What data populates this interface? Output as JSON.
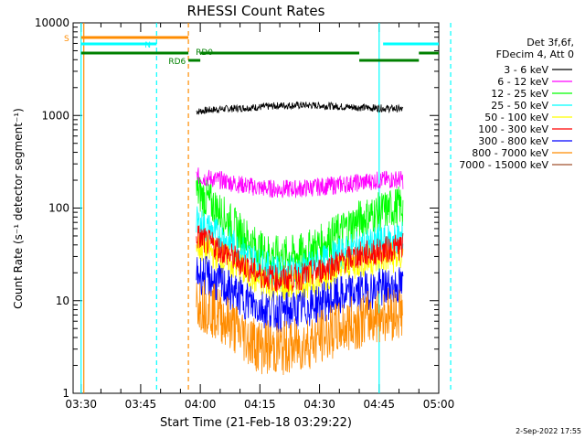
{
  "chart_data": {
    "type": "line",
    "title": "RHESSI Count Rates",
    "xlabel": "Start Time (21-Feb-18 03:29:22)",
    "ylabel": "Count Rate (s⁻¹ detector segment⁻¹)",
    "yscale": "log",
    "xlim_minutes_after_0330": [
      -2,
      90
    ],
    "ylim": [
      1,
      10000
    ],
    "x_tick_labels": [
      "03:30",
      "03:45",
      "04:00",
      "04:15",
      "04:30",
      "04:45",
      "05:00"
    ],
    "x_tick_minutes": [
      0,
      15,
      30,
      45,
      60,
      75,
      90
    ],
    "y_tick_labels": [
      "1",
      "10",
      "100",
      "1000",
      "10000"
    ],
    "y_tick_values": [
      1,
      10,
      100,
      1000,
      10000
    ],
    "legend_header": [
      "Det 3f,6f,",
      "FDecim 4, Att 0"
    ],
    "series": [
      {
        "name": "3 - 6 keV",
        "color": "#000000",
        "x": [
          -2,
          -2,
          -2,
          -2,
          -2,
          -2,
          -2,
          -2,
          -2,
          -2,
          -2,
          -2,
          -2
        ],
        "times": [
          "03:59",
          "04:02",
          "04:05",
          "04:10",
          "04:15",
          "04:20",
          "04:25",
          "04:30",
          "04:35",
          "04:40",
          "04:45",
          "04:50",
          "04:51"
        ],
        "values": [
          1100,
          1140,
          1170,
          1200,
          1230,
          1280,
          1290,
          1280,
          1250,
          1220,
          1200,
          1180,
          1150
        ]
      },
      {
        "name": "6 - 12 keV",
        "color": "#ff00ff",
        "times": [
          "03:59",
          "04:02",
          "04:05",
          "04:10",
          "04:15",
          "04:20",
          "04:25",
          "04:30",
          "04:35",
          "04:40",
          "04:45",
          "04:50",
          "04:51"
        ],
        "values": [
          220,
          210,
          200,
          180,
          165,
          160,
          162,
          170,
          178,
          188,
          200,
          205,
          200
        ]
      },
      {
        "name": "12 - 25 keV",
        "color": "#00ff00",
        "times": [
          "03:59",
          "04:02",
          "04:05",
          "04:10",
          "04:15",
          "04:20",
          "04:25",
          "04:30",
          "04:35",
          "04:40",
          "04:45",
          "04:50",
          "04:51"
        ],
        "values": [
          150,
          120,
          90,
          55,
          35,
          30,
          32,
          40,
          55,
          75,
          90,
          105,
          100
        ]
      },
      {
        "name": "25 - 50 keV",
        "color": "#00ffff",
        "times": [
          "03:59",
          "04:02",
          "04:05",
          "04:10",
          "04:15",
          "04:20",
          "04:25",
          "04:30",
          "04:35",
          "04:40",
          "04:45",
          "04:50",
          "04:51"
        ],
        "values": [
          70,
          60,
          50,
          35,
          25,
          20,
          21,
          25,
          32,
          38,
          42,
          48,
          48
        ]
      },
      {
        "name": "50 - 100 keV",
        "color": "#ffff00",
        "times": [
          "03:59",
          "04:02",
          "04:05",
          "04:10",
          "04:15",
          "04:20",
          "04:25",
          "04:30",
          "04:35",
          "04:40",
          "04:45",
          "04:50",
          "04:51"
        ],
        "values": [
          40,
          35,
          30,
          22,
          16,
          14,
          15,
          17,
          22,
          26,
          28,
          30,
          30
        ]
      },
      {
        "name": "100 - 300 keV",
        "color": "#ff0000",
        "times": [
          "03:59",
          "04:02",
          "04:05",
          "04:10",
          "04:15",
          "04:20",
          "04:25",
          "04:30",
          "04:35",
          "04:40",
          "04:45",
          "04:50",
          "04:51"
        ],
        "values": [
          50,
          42,
          36,
          26,
          19,
          17,
          18,
          21,
          26,
          31,
          34,
          38,
          38
        ]
      },
      {
        "name": "300 - 800 keV",
        "color": "#0000ff",
        "times": [
          "03:59",
          "04:02",
          "04:05",
          "04:10",
          "04:15",
          "04:20",
          "04:25",
          "04:30",
          "04:35",
          "04:40",
          "04:45",
          "04:50",
          "04:51"
        ],
        "values": [
          20,
          18,
          15,
          11,
          8.5,
          7.5,
          8,
          9.5,
          11,
          12.5,
          13.5,
          14.5,
          14
        ]
      },
      {
        "name": "800 - 7000 keV",
        "color": "#ff8c00",
        "times": [
          "03:59",
          "04:02",
          "04:05",
          "04:10",
          "04:15",
          "04:20",
          "04:25",
          "04:30",
          "04:35",
          "04:40",
          "04:45",
          "04:50",
          "04:51"
        ],
        "values": [
          10,
          8.5,
          7,
          4.5,
          3.2,
          3.0,
          3.3,
          4,
          5,
          6,
          7,
          7.5,
          7.5
        ]
      },
      {
        "name": "7000 - 15000 keV",
        "color": "#a0522d",
        "times": [],
        "values": []
      }
    ],
    "vertical_lines": [
      {
        "time": "03:30",
        "color": "#00ffff",
        "style": "solid"
      },
      {
        "time": "03:30",
        "color": "#ff8c00",
        "style": "solid"
      },
      {
        "time": "03:49",
        "color": "#00ffff",
        "style": "dashed"
      },
      {
        "time": "03:57",
        "color": "#ff8c00",
        "style": "dashed"
      },
      {
        "time": "04:45",
        "color": "#00ffff",
        "style": "solid"
      },
      {
        "time": "05:03",
        "color": "#00ffff",
        "style": "dashed"
      }
    ],
    "flag_bars": [
      {
        "label": "S",
        "color": "#ff8c00",
        "level": "top",
        "segments": [
          [
            "03:30",
            "03:57"
          ]
        ]
      },
      {
        "label": "N",
        "color": "#00ffff",
        "level": "second",
        "segments": [
          [
            "03:30",
            "03:49"
          ],
          [
            "04:46",
            "05:05"
          ]
        ]
      },
      {
        "label": "RD0",
        "color": "#008000",
        "level": "third",
        "segments": [
          [
            "03:30",
            "03:57"
          ],
          [
            "04:00",
            "04:40"
          ],
          [
            "04:55",
            "05:04"
          ]
        ]
      },
      {
        "label": "RD6",
        "color": "#008000",
        "level": "fourth",
        "segments": [
          [
            "03:57",
            "04:00"
          ],
          [
            "04:40",
            "04:55"
          ]
        ]
      }
    ],
    "footer_date": "2-Sep-2022 17:55"
  }
}
